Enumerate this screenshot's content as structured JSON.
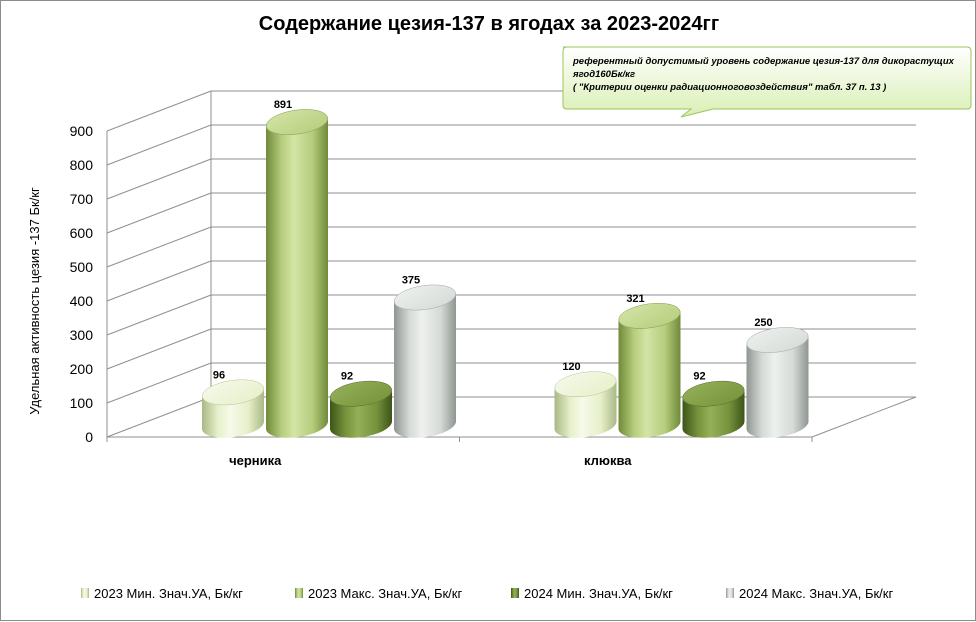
{
  "chart_data": {
    "type": "bar",
    "title": "Содержание цезия-137  в ягодах за 2023-2024гг",
    "ylabel": "Удельная активность цезия -137 Бк/кг",
    "xlabel": "",
    "ylim": [
      0,
      900
    ],
    "yticks": [
      0,
      100,
      200,
      300,
      400,
      500,
      600,
      700,
      800,
      900
    ],
    "grid": true,
    "legend_position": "bottom",
    "categories": [
      "черника",
      "клюква"
    ],
    "series": [
      {
        "name": "2023 Мин. Знач.УА, Бк/кг",
        "values": [
          96,
          120
        ],
        "color": "#e6efc8",
        "color_dark": "#a9b886",
        "color_light": "#f6faea"
      },
      {
        "name": "2023 Макс. Знач.УА, Бк/кг",
        "values": [
          891,
          321
        ],
        "color": "#b5cd7c",
        "color_dark": "#6f8a3a",
        "color_light": "#d4e4a6"
      },
      {
        "name": "2024 Мин. Знач.УА, Бк/кг",
        "values": [
          92,
          92
        ],
        "color": "#76933c",
        "color_dark": "#3d5418",
        "color_light": "#94b158"
      },
      {
        "name": "2024 Макс. Знач.УА, Бк/кг",
        "values": [
          375,
          250
        ],
        "color": "#d5dad6",
        "color_dark": "#8f9691",
        "color_light": "#eef1ee"
      }
    ],
    "data_labels": [
      [
        "96",
        "120"
      ],
      [
        "891",
        "321"
      ],
      [
        "92",
        "92"
      ],
      [
        "375",
        "250"
      ]
    ]
  },
  "callout": {
    "line1": "референтный допустимый уровень содержание цезия-137 для дикорастущих",
    "line2": "ягод160Бк/кг",
    "line3": "( \"Критерии оценки радиационноговоздействия\" табл. 37 п. 13 )"
  }
}
